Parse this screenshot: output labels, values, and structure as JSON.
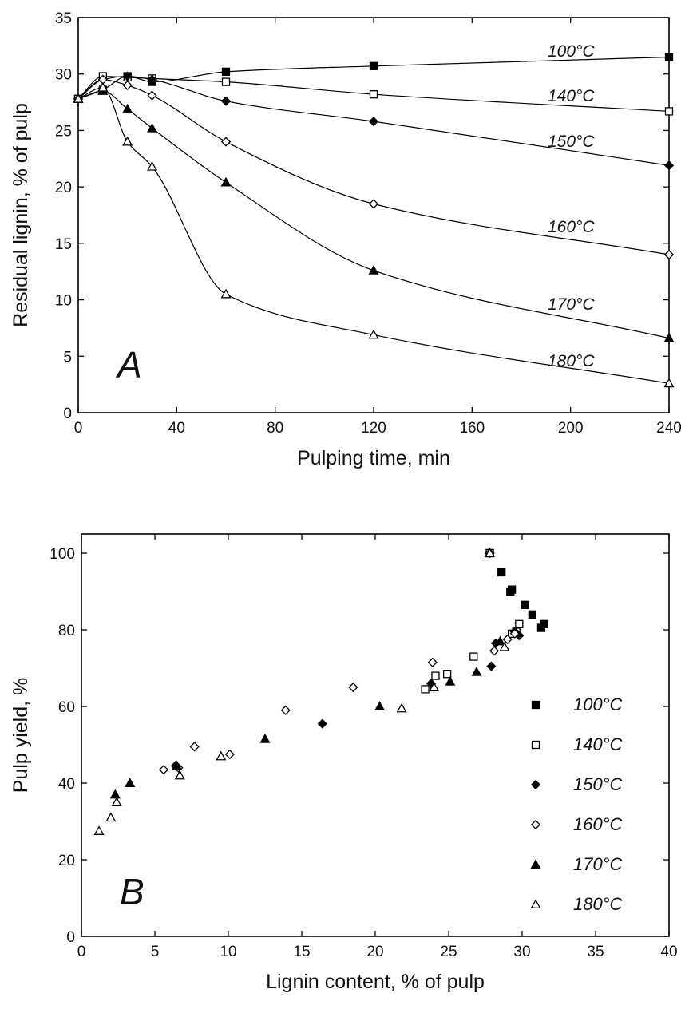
{
  "chart_data": [
    {
      "type": "line",
      "panel": "A",
      "xlabel": "Pulping time, min",
      "ylabel": "Residual lignin, % of pulp",
      "xlim": [
        0,
        240
      ],
      "ylim": [
        0,
        35
      ],
      "xticks": [
        0,
        40,
        80,
        120,
        160,
        200,
        240
      ],
      "yticks": [
        0,
        5,
        10,
        15,
        20,
        25,
        30,
        35
      ],
      "grid": false,
      "series": [
        {
          "name": "100°C",
          "marker": "filled-square",
          "x": [
            0,
            10,
            20,
            30,
            60,
            120,
            240
          ],
          "y": [
            27.8,
            28.6,
            29.8,
            29.3,
            30.2,
            30.7,
            31.5
          ]
        },
        {
          "name": "140°C",
          "marker": "open-square",
          "x": [
            0,
            10,
            20,
            30,
            60,
            120,
            240
          ],
          "y": [
            27.8,
            29.8,
            29.7,
            29.6,
            29.3,
            28.2,
            26.7
          ]
        },
        {
          "name": "150°C",
          "marker": "filled-diamond",
          "x": [
            0,
            10,
            20,
            30,
            60,
            120,
            240
          ],
          "y": [
            27.8,
            29.5,
            29.8,
            29.5,
            27.6,
            25.8,
            21.9
          ]
        },
        {
          "name": "160°C",
          "marker": "open-diamond",
          "x": [
            0,
            10,
            20,
            30,
            60,
            120,
            240
          ],
          "y": [
            27.8,
            29.5,
            29.0,
            28.1,
            24.0,
            18.5,
            14.0
          ]
        },
        {
          "name": "170°C",
          "marker": "filled-triangle",
          "x": [
            0,
            10,
            20,
            30,
            60,
            120,
            240
          ],
          "y": [
            27.8,
            28.5,
            26.9,
            25.2,
            20.4,
            12.6,
            6.6
          ]
        },
        {
          "name": "180°C",
          "marker": "open-triangle",
          "x": [
            0,
            10,
            20,
            30,
            60,
            120,
            240
          ],
          "y": [
            27.8,
            28.8,
            24.0,
            21.8,
            10.5,
            6.9,
            2.6
          ]
        }
      ]
    },
    {
      "type": "scatter",
      "panel": "B",
      "xlabel": "Lignin content, % of pulp",
      "ylabel": "Pulp yield, %",
      "xlim": [
        0,
        40
      ],
      "ylim": [
        0,
        105
      ],
      "xticks": [
        0,
        5,
        10,
        15,
        20,
        25,
        30,
        35,
        40
      ],
      "yticks": [
        0,
        20,
        40,
        60,
        80,
        100
      ],
      "grid": false,
      "legend": "right",
      "series": [
        {
          "name": "100°C",
          "marker": "filled-square",
          "x": [
            27.8,
            28.6,
            29.3,
            29.2,
            30.2,
            30.7,
            31.3,
            31.5
          ],
          "y": [
            100,
            95,
            90.5,
            90,
            86.5,
            84,
            80.5,
            81.5
          ]
        },
        {
          "name": "140°C",
          "marker": "open-square",
          "x": [
            27.8,
            29.8,
            29.6,
            29.3,
            26.7,
            24.9,
            24.1,
            23.4
          ],
          "y": [
            100,
            81.5,
            79.5,
            79,
            73,
            68.5,
            68,
            64.5
          ]
        },
        {
          "name": "150°C",
          "marker": "filled-diamond",
          "x": [
            27.8,
            29.8,
            29.5,
            28.2,
            27.9,
            23.8,
            16.4,
            6.4
          ],
          "y": [
            100,
            78.5,
            79.5,
            76.5,
            70.5,
            66,
            55.5,
            44.5
          ]
        },
        {
          "name": "160°C",
          "marker": "open-diamond",
          "x": [
            27.8,
            29.5,
            29.0,
            28.1,
            23.9,
            18.5,
            13.9,
            7.7,
            6.6,
            5.6,
            10.1
          ],
          "y": [
            100,
            79,
            77.5,
            74.5,
            71.5,
            65,
            59,
            49.5,
            44,
            43.5,
            47.5
          ]
        },
        {
          "name": "170°C",
          "marker": "filled-triangle",
          "x": [
            27.8,
            28.5,
            26.9,
            25.1,
            20.3,
            12.5,
            6.5,
            3.3,
            2.3
          ],
          "y": [
            100,
            77,
            69,
            66.5,
            60,
            51.5,
            44.5,
            40,
            37
          ]
        },
        {
          "name": "180°C",
          "marker": "open-triangle",
          "x": [
            27.8,
            28.8,
            24.0,
            21.8,
            9.5,
            6.7,
            2.4,
            2.0,
            1.2
          ],
          "y": [
            100,
            75.5,
            65,
            59.5,
            47,
            42,
            35,
            31,
            27.5
          ]
        }
      ]
    }
  ]
}
